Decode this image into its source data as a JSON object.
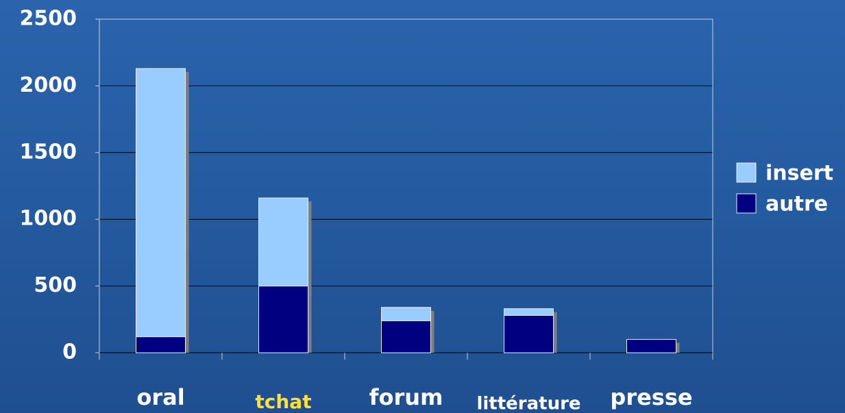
{
  "chart_data": {
    "type": "stacked_bar",
    "categories": [
      "oral",
      "tchat",
      "forum",
      "littérature",
      "presse"
    ],
    "category_label_colors": [
      "#ffffff",
      "#ffe033",
      "#ffffff",
      "#ffffff",
      "#ffffff"
    ],
    "series": [
      {
        "name": "autre",
        "color": "#000080",
        "values": [
          120,
          500,
          240,
          280,
          100
        ]
      },
      {
        "name": "insert",
        "color": "#99ccff",
        "values": [
          2010,
          660,
          100,
          50,
          0
        ]
      }
    ],
    "ylim": [
      0,
      2500
    ],
    "yticks": [
      0,
      500,
      1000,
      1500,
      2000,
      2500
    ],
    "grid": true,
    "legend": "right"
  }
}
